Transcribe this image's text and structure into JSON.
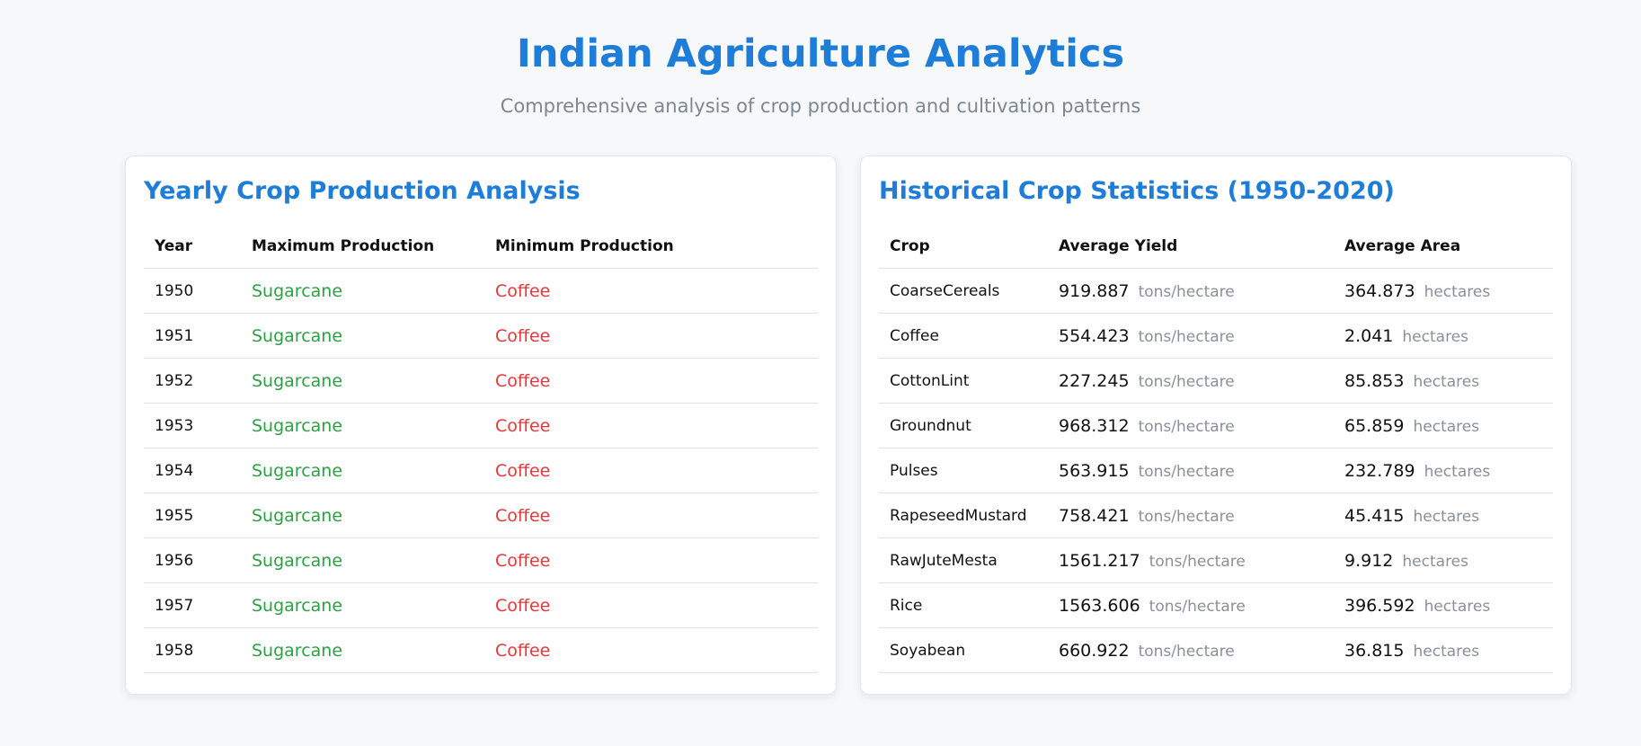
{
  "header": {
    "title": "Indian Agriculture Analytics",
    "subtitle": "Comprehensive analysis of crop production and cultivation patterns"
  },
  "yearly": {
    "title": "Yearly Crop Production Analysis",
    "columns": [
      "Year",
      "Maximum Production",
      "Minimum Production"
    ],
    "rows": [
      {
        "year": "1950",
        "max": "Sugarcane",
        "min": "Coffee"
      },
      {
        "year": "1951",
        "max": "Sugarcane",
        "min": "Coffee"
      },
      {
        "year": "1952",
        "max": "Sugarcane",
        "min": "Coffee"
      },
      {
        "year": "1953",
        "max": "Sugarcane",
        "min": "Coffee"
      },
      {
        "year": "1954",
        "max": "Sugarcane",
        "min": "Coffee"
      },
      {
        "year": "1955",
        "max": "Sugarcane",
        "min": "Coffee"
      },
      {
        "year": "1956",
        "max": "Sugarcane",
        "min": "Coffee"
      },
      {
        "year": "1957",
        "max": "Sugarcane",
        "min": "Coffee"
      },
      {
        "year": "1958",
        "max": "Sugarcane",
        "min": "Coffee"
      }
    ]
  },
  "historical": {
    "title": "Historical Crop Statistics (1950-2020)",
    "columns": [
      "Crop",
      "Average Yield",
      "Average Area"
    ],
    "yield_unit": "tons/hectare",
    "area_unit": "hectares",
    "rows": [
      {
        "crop": "CoarseCereals",
        "yield": "919.887",
        "area": "364.873"
      },
      {
        "crop": "Coffee",
        "yield": "554.423",
        "area": "2.041"
      },
      {
        "crop": "CottonLint",
        "yield": "227.245",
        "area": "85.853"
      },
      {
        "crop": "Groundnut",
        "yield": "968.312",
        "area": "65.859"
      },
      {
        "crop": "Pulses",
        "yield": "563.915",
        "area": "232.789"
      },
      {
        "crop": "RapeseedMustard",
        "yield": "758.421",
        "area": "45.415"
      },
      {
        "crop": "RawJuteMesta",
        "yield": "1561.217",
        "area": "9.912"
      },
      {
        "crop": "Rice",
        "yield": "1563.606",
        "area": "396.592"
      },
      {
        "crop": "Soyabean",
        "yield": "660.922",
        "area": "36.815"
      }
    ]
  },
  "colors": {
    "accent": "#1e7dd8",
    "max_production": "#2ea043",
    "min_production": "#e5383b"
  }
}
